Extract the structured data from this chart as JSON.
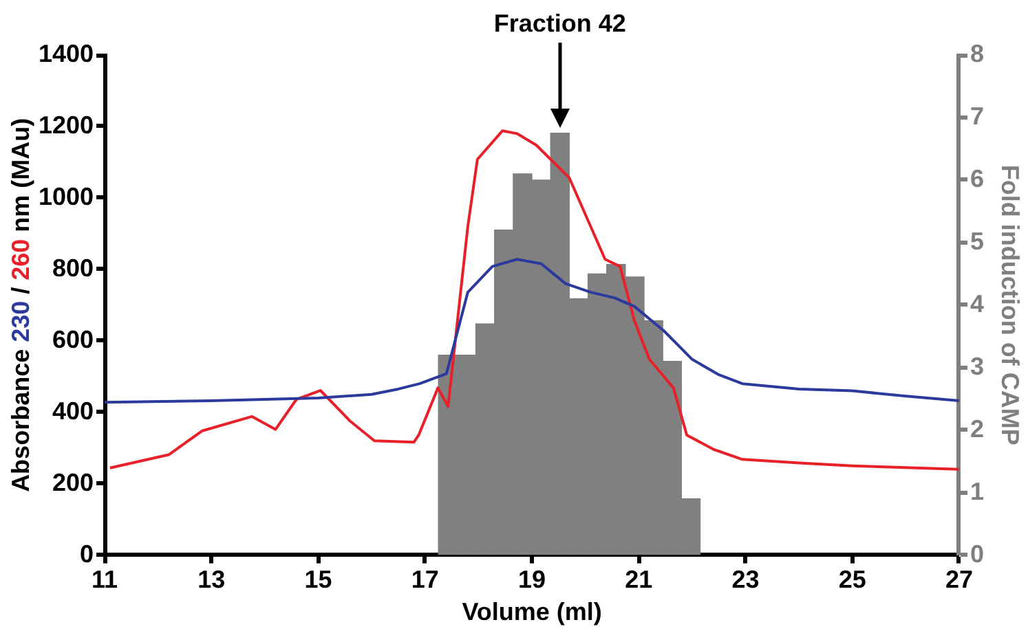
{
  "chart_data": {
    "type": "line",
    "xlabel": "Volume (ml)",
    "ylabel": "Absorbance 230 / 260 nm (MAu)",
    "y2label": "Fold induction of CAMP",
    "annotations": [
      "Fraction 42"
    ],
    "xlim": [
      11,
      27
    ],
    "xticks": [
      11,
      13,
      15,
      17,
      19,
      21,
      23,
      25,
      27
    ],
    "ylim": [
      0,
      1400
    ],
    "yticks": [
      0,
      200,
      400,
      600,
      800,
      1000,
      1200,
      1400
    ],
    "y2lim": [
      0,
      8
    ],
    "y2ticks": [
      0,
      1,
      2,
      3,
      4,
      5,
      6,
      7,
      8
    ],
    "series": [
      {
        "type": "histogram",
        "axis": "y2",
        "color": "#808080",
        "bins": [
          17.25,
          17.6,
          17.95,
          18.3,
          18.65,
          19.0,
          19.35,
          19.7,
          20.05,
          20.4,
          20.75,
          21.1,
          21.45,
          21.8,
          22.15
        ],
        "values": [
          3.2,
          3.2,
          3.7,
          5.2,
          6.1,
          6.0,
          6.75,
          4.1,
          4.5,
          4.65,
          4.45,
          3.75,
          3.1,
          0.9
        ]
      },
      {
        "axis": "y",
        "color": "#2b3a9c",
        "x": [
          11,
          13,
          15,
          16,
          16.5,
          16.9,
          17.4,
          17.8,
          18.26,
          18.72,
          19.17,
          19.63,
          20.1,
          20.55,
          20.92,
          21.47,
          22.0,
          22.5,
          22.94,
          24,
          25,
          26,
          27
        ],
        "values": [
          428,
          432,
          440,
          450,
          465,
          480,
          508,
          736,
          808,
          828,
          816,
          760,
          736,
          720,
          696,
          628,
          548,
          505,
          480,
          465,
          460,
          445,
          432
        ]
      },
      {
        "axis": "y",
        "color": "#e8202a",
        "x": [
          11.1,
          12.2,
          12.83,
          13.76,
          14.2,
          14.59,
          15.04,
          15.59,
          16.05,
          16.79,
          16.88,
          17.24,
          17.43,
          17.8,
          17.98,
          18.45,
          18.72,
          19.08,
          19.7,
          20.37,
          20.65,
          20.92,
          21.2,
          21.65,
          21.9,
          22.4,
          22.94,
          24,
          25,
          26,
          27
        ],
        "values": [
          244,
          281,
          348,
          388,
          352,
          436,
          461,
          376,
          320,
          316,
          336,
          468,
          416,
          920,
          1108,
          1188,
          1180,
          1148,
          1056,
          828,
          808,
          656,
          548,
          468,
          336,
          296,
          268,
          258,
          250,
          245,
          240
        ]
      }
    ]
  }
}
